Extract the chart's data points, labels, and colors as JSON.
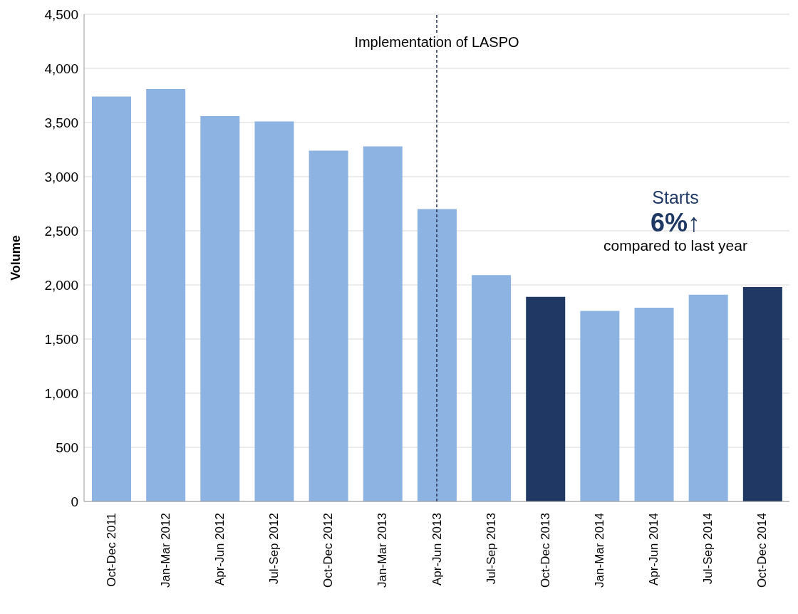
{
  "chart_data": {
    "type": "bar",
    "ylabel": "Volume",
    "categories": [
      "Oct-Dec 2011",
      "Jan-Mar 2012",
      "Apr-Jun 2012",
      "Jul-Sep 2012",
      "Oct-Dec 2012",
      "Jan-Mar 2013",
      "Apr-Jun 2013",
      "Jul-Sep 2013",
      "Oct-Dec 2013",
      "Jan-Mar 2014",
      "Apr-Jun 2014",
      "Jul-Sep 2014",
      "Oct-Dec 2014"
    ],
    "values": [
      3740,
      3810,
      3560,
      3510,
      3240,
      3280,
      2700,
      2090,
      1890,
      1760,
      1790,
      1910,
      1980
    ],
    "colors": [
      "#8db3e2",
      "#8db3e2",
      "#8db3e2",
      "#8db3e2",
      "#8db3e2",
      "#8db3e2",
      "#8db3e2",
      "#8db3e2",
      "#1f3864",
      "#8db3e2",
      "#8db3e2",
      "#8db3e2",
      "#1f3864"
    ],
    "ylim": [
      0,
      4500
    ],
    "yticks": [
      0,
      500,
      {
        "value": 1000,
        "label": "1,000"
      },
      {
        "value": 1500,
        "label": "1,500"
      },
      {
        "value": 2000,
        "label": "2,000"
      },
      {
        "value": 2500,
        "label": "2,500"
      },
      {
        "value": 3000,
        "label": "3,000"
      },
      {
        "value": 3500,
        "label": "3,500"
      },
      {
        "value": 4000,
        "label": "4,000"
      },
      {
        "value": 4500,
        "label": "4,500"
      }
    ],
    "grid": "y",
    "ref_lines": [
      {
        "axis": "x",
        "value": "Apr-Jun 2013",
        "label": "Implementation of LASPO",
        "color": "#1f2d4d",
        "line_style": "dashed"
      }
    ],
    "annotations": [
      "Starts",
      "6%↑",
      "compared to last year"
    ]
  }
}
